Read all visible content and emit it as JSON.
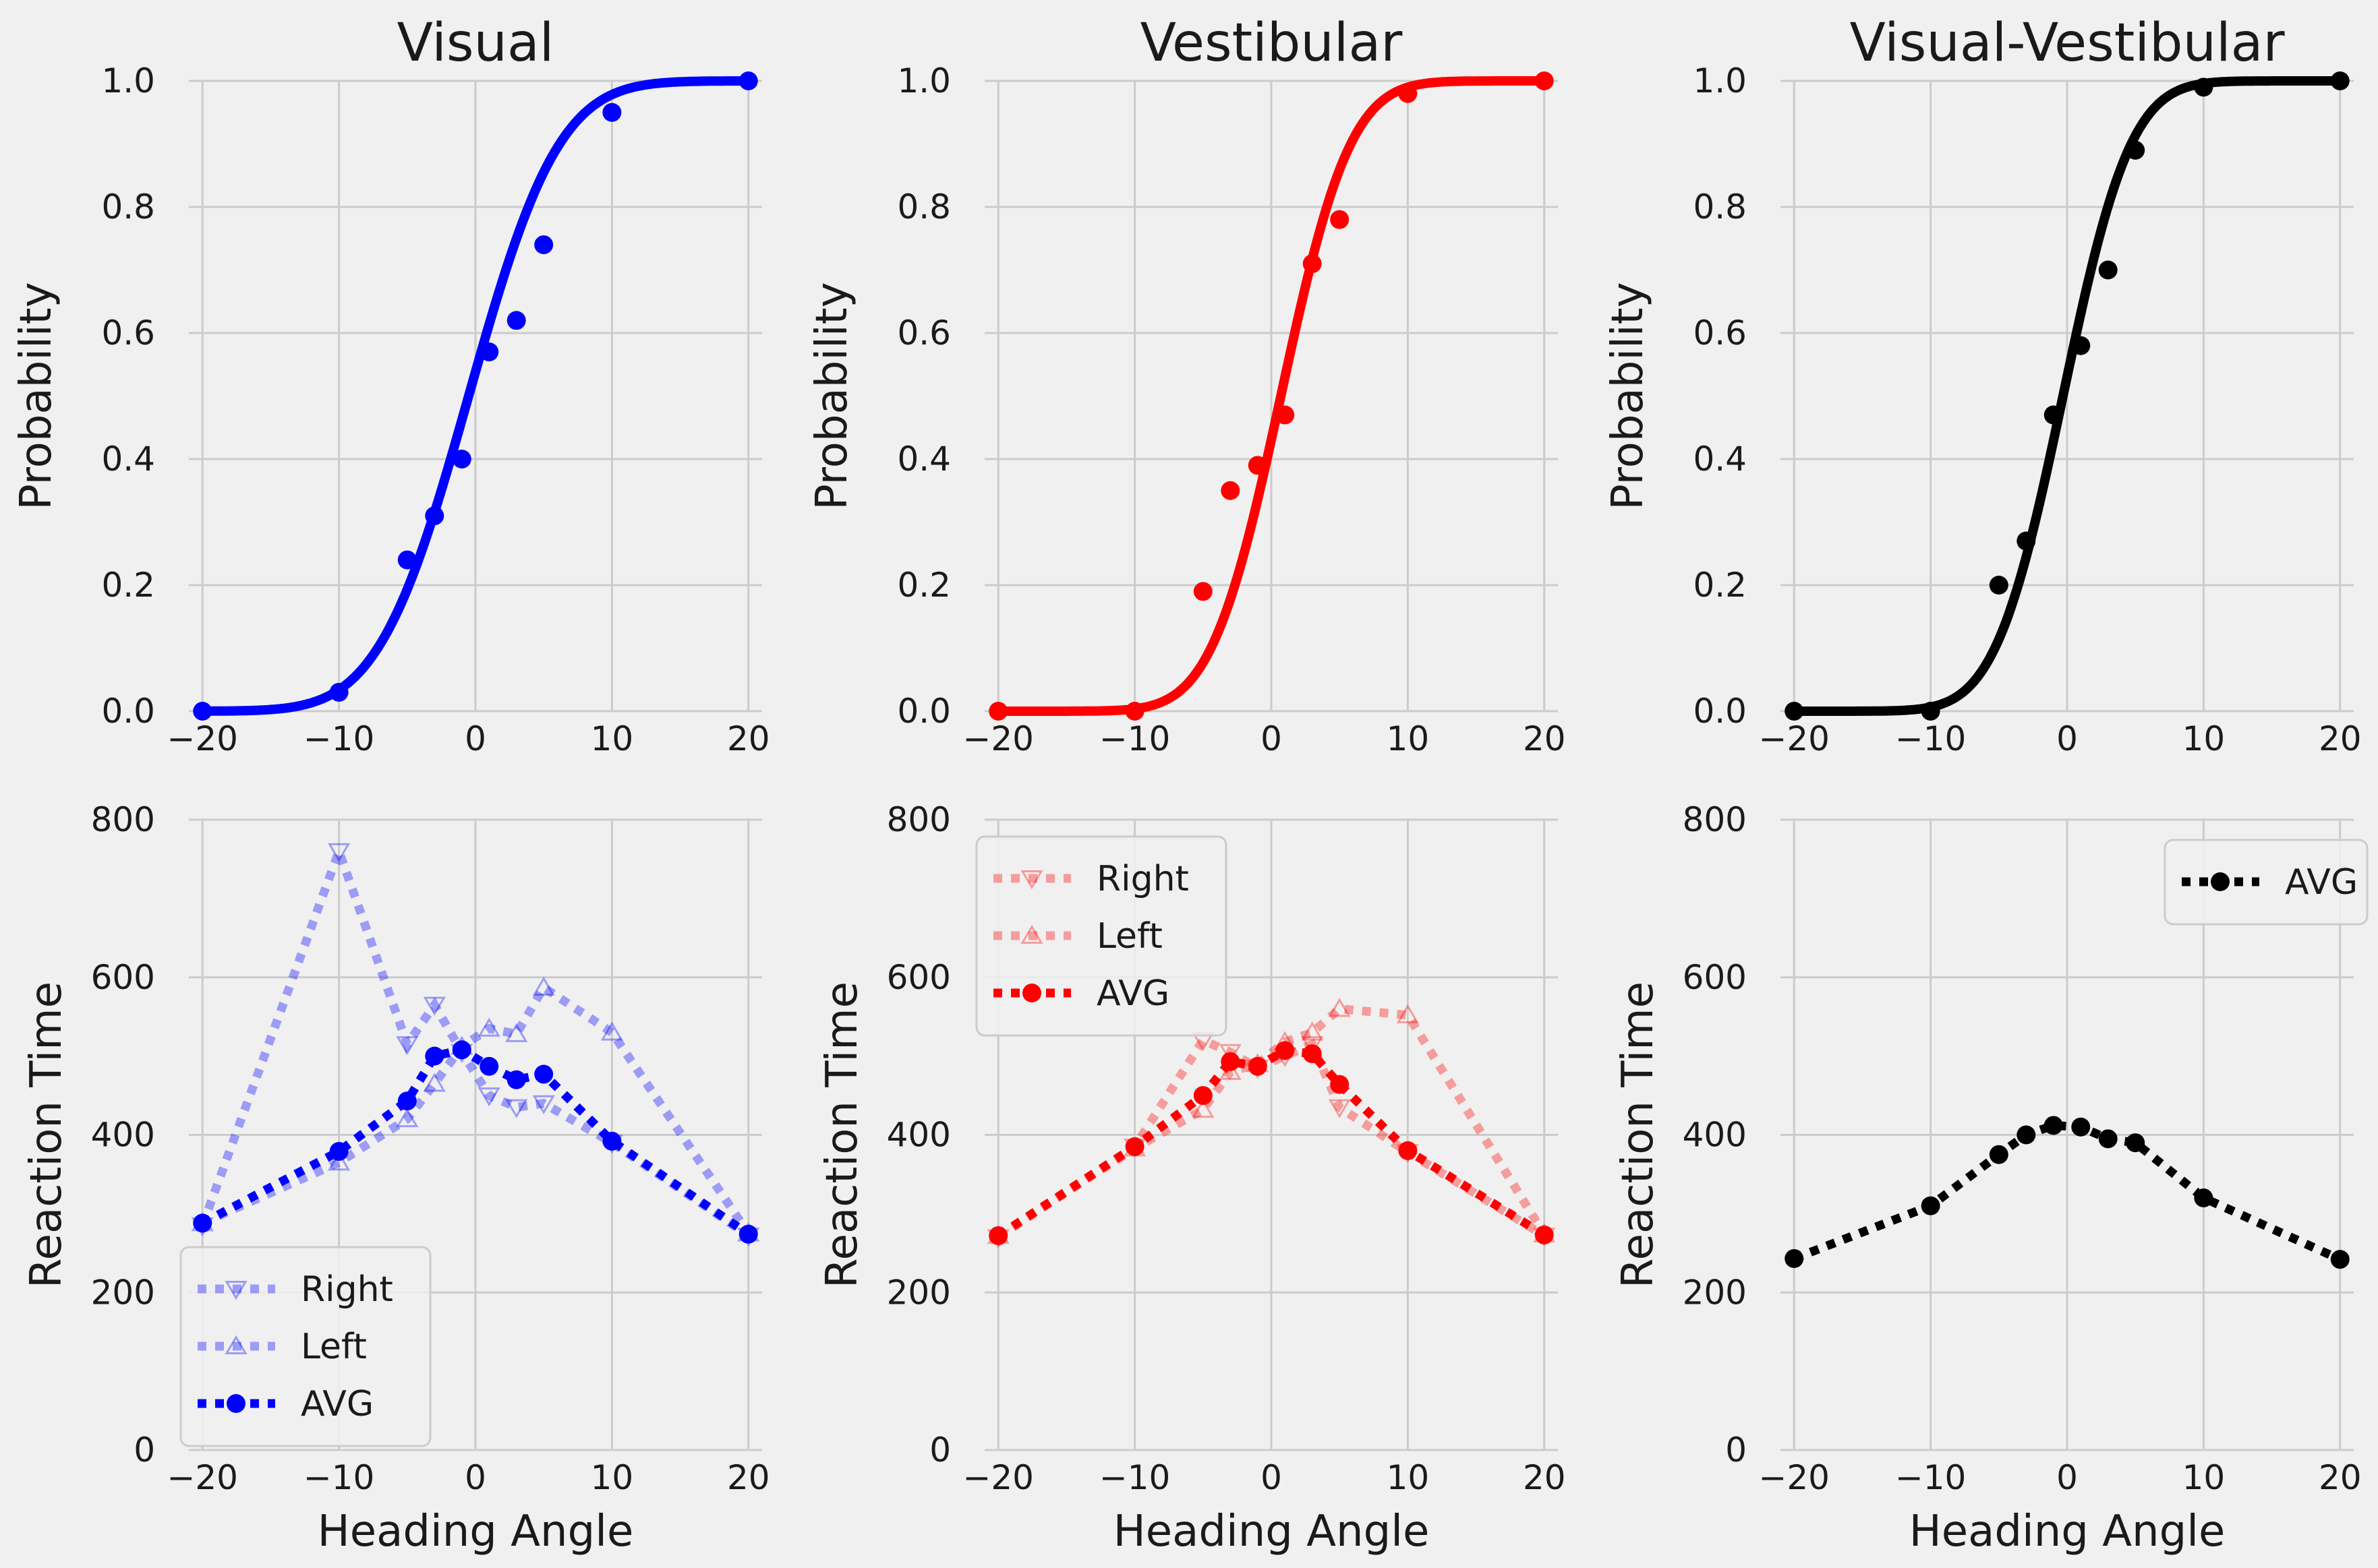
{
  "figure": {
    "background": "#f0f0f0",
    "plot_background": "#f0f0f0",
    "grid_color": "#cbcbcb"
  },
  "chart_data": [
    {
      "type": "scatter",
      "title": "Visual",
      "xlabel": "",
      "ylabel": "Probability",
      "xlim": [
        -21,
        21
      ],
      "ylim": [
        0,
        1
      ],
      "xticks": [
        -20,
        -10,
        0,
        10,
        20
      ],
      "yticks": [
        0,
        0.2,
        0.4,
        0.6,
        0.8,
        1.0
      ],
      "xtick_labels": [
        "−20",
        "−10",
        "0",
        "10",
        "20"
      ],
      "ytick_labels": [
        "0.0",
        "0.2",
        "0.4",
        "0.6",
        "0.8",
        "1.0"
      ],
      "grid": true,
      "color": "#0000ff",
      "points": {
        "x": [
          -20,
          -10,
          -5,
          -3,
          -1,
          1,
          3,
          5,
          10,
          20
        ],
        "y": [
          0.0,
          0.03,
          0.24,
          0.31,
          0.4,
          0.57,
          0.62,
          0.74,
          0.95,
          1.0
        ]
      },
      "fit": {
        "mu": -0.5,
        "sigma": 5.2
      }
    },
    {
      "type": "scatter",
      "title": "Vestibular",
      "xlabel": "",
      "ylabel": "Probability",
      "xlim": [
        -21,
        21
      ],
      "ylim": [
        0,
        1
      ],
      "xticks": [
        -20,
        -10,
        0,
        10,
        20
      ],
      "yticks": [
        0,
        0.2,
        0.4,
        0.6,
        0.8,
        1.0
      ],
      "xtick_labels": [
        "−20",
        "−10",
        "0",
        "10",
        "20"
      ],
      "ytick_labels": [
        "0.0",
        "0.2",
        "0.4",
        "0.6",
        "0.8",
        "1.0"
      ],
      "grid": true,
      "color": "#ff0000",
      "points": {
        "x": [
          -20,
          -10,
          -5,
          -3,
          -1,
          1,
          3,
          5,
          10,
          20
        ],
        "y": [
          0.0,
          0.0,
          0.19,
          0.35,
          0.39,
          0.47,
          0.71,
          0.78,
          0.98,
          1.0
        ]
      },
      "fit": {
        "mu": 0.7,
        "sigma": 4.0
      }
    },
    {
      "type": "scatter",
      "title": "Visual-Vestibular",
      "xlabel": "",
      "ylabel": "Probability",
      "xlim": [
        -21,
        21
      ],
      "ylim": [
        0,
        1
      ],
      "xticks": [
        -20,
        -10,
        0,
        10,
        20
      ],
      "yticks": [
        0,
        0.2,
        0.4,
        0.6,
        0.8,
        1.0
      ],
      "xtick_labels": [
        "−20",
        "−10",
        "0",
        "10",
        "20"
      ],
      "ytick_labels": [
        "0.0",
        "0.2",
        "0.4",
        "0.6",
        "0.8",
        "1.0"
      ],
      "grid": true,
      "color": "#000000",
      "points": {
        "x": [
          -20,
          -10,
          -5,
          -3,
          -1,
          1,
          3,
          5,
          10,
          20
        ],
        "y": [
          0.0,
          0.0,
          0.2,
          0.27,
          0.47,
          0.58,
          0.7,
          0.89,
          0.99,
          1.0
        ]
      },
      "fit": {
        "mu": -0.3,
        "sigma": 3.9
      }
    },
    {
      "type": "line",
      "title": "",
      "xlabel": "Heading Angle",
      "ylabel": "Reaction Time",
      "xlim": [
        -21,
        21
      ],
      "ylim": [
        0,
        800
      ],
      "xticks": [
        -20,
        -10,
        0,
        10,
        20
      ],
      "yticks": [
        0,
        200,
        400,
        600,
        800
      ],
      "xtick_labels": [
        "−20",
        "−10",
        "0",
        "10",
        "20"
      ],
      "ytick_labels": [
        "0",
        "200",
        "400",
        "600",
        "800"
      ],
      "grid": true,
      "legend": "lower-left",
      "series": [
        {
          "name": "Right",
          "marker": "triangle-down",
          "color": "#0000ff",
          "alpha": 0.35,
          "open": true,
          "x": [
            -20,
            -10,
            -5,
            -3,
            -1,
            1,
            3,
            5,
            10,
            20
          ],
          "y": [
            285,
            760,
            515,
            565,
            505,
            450,
            435,
            440,
            390,
            272
          ]
        },
        {
          "name": "Left",
          "marker": "triangle-up",
          "color": "#0000ff",
          "alpha": 0.35,
          "open": true,
          "x": [
            -20,
            -10,
            -5,
            -3,
            -1,
            1,
            3,
            5,
            10,
            20
          ],
          "y": [
            288,
            365,
            420,
            465,
            512,
            535,
            528,
            587,
            530,
            275
          ]
        },
        {
          "name": "AVG",
          "marker": "circle",
          "color": "#0000ff",
          "alpha": 1.0,
          "open": false,
          "x": [
            -20,
            -10,
            -5,
            -3,
            -1,
            1,
            3,
            5,
            10,
            20
          ],
          "y": [
            288,
            379,
            443,
            500,
            508,
            487,
            470,
            477,
            392,
            274
          ]
        }
      ]
    },
    {
      "type": "line",
      "title": "",
      "xlabel": "Heading Angle",
      "ylabel": "Reaction Time",
      "xlim": [
        -21,
        21
      ],
      "ylim": [
        0,
        800
      ],
      "xticks": [
        -20,
        -10,
        0,
        10,
        20
      ],
      "yticks": [
        0,
        200,
        400,
        600,
        800
      ],
      "xtick_labels": [
        "−20",
        "−10",
        "0",
        "10",
        "20"
      ],
      "ytick_labels": [
        "0",
        "200",
        "400",
        "600",
        "800"
      ],
      "grid": true,
      "legend": "upper-left",
      "series": [
        {
          "name": "Right",
          "marker": "triangle-down",
          "color": "#ff0000",
          "alpha": 0.35,
          "open": true,
          "x": [
            -20,
            -10,
            -5,
            -3,
            -1,
            1,
            3,
            5,
            10,
            20
          ],
          "y": [
            270,
            385,
            520,
            505,
            485,
            500,
            515,
            435,
            378,
            272
          ]
        },
        {
          "name": "Left",
          "marker": "triangle-up",
          "color": "#ff0000",
          "alpha": 0.35,
          "open": true,
          "x": [
            -20,
            -10,
            -5,
            -3,
            -1,
            1,
            3,
            5,
            10,
            20
          ],
          "y": [
            272,
            383,
            432,
            480,
            490,
            518,
            530,
            560,
            552,
            274
          ]
        },
        {
          "name": "AVG",
          "marker": "circle",
          "color": "#ff0000",
          "alpha": 1.0,
          "open": false,
          "x": [
            -20,
            -10,
            -5,
            -3,
            -1,
            1,
            3,
            5,
            10,
            20
          ],
          "y": [
            272,
            385,
            450,
            493,
            487,
            507,
            503,
            464,
            380,
            273
          ]
        }
      ]
    },
    {
      "type": "line",
      "title": "",
      "xlabel": "Heading Angle",
      "ylabel": "Reaction Time",
      "xlim": [
        -21,
        21
      ],
      "ylim": [
        0,
        800
      ],
      "xticks": [
        -20,
        -10,
        0,
        10,
        20
      ],
      "yticks": [
        0,
        200,
        400,
        600,
        800
      ],
      "xtick_labels": [
        "−20",
        "−10",
        "0",
        "10",
        "20"
      ],
      "ytick_labels": [
        "0",
        "200",
        "400",
        "600",
        "800"
      ],
      "grid": true,
      "legend": "upper-right",
      "series": [
        {
          "name": "AVG",
          "marker": "circle",
          "color": "#000000",
          "alpha": 1.0,
          "open": false,
          "x": [
            -20,
            -10,
            -5,
            -3,
            -1,
            1,
            3,
            5,
            10,
            20
          ],
          "y": [
            243,
            310,
            375,
            400,
            412,
            410,
            395,
            390,
            320,
            242
          ]
        }
      ]
    }
  ]
}
